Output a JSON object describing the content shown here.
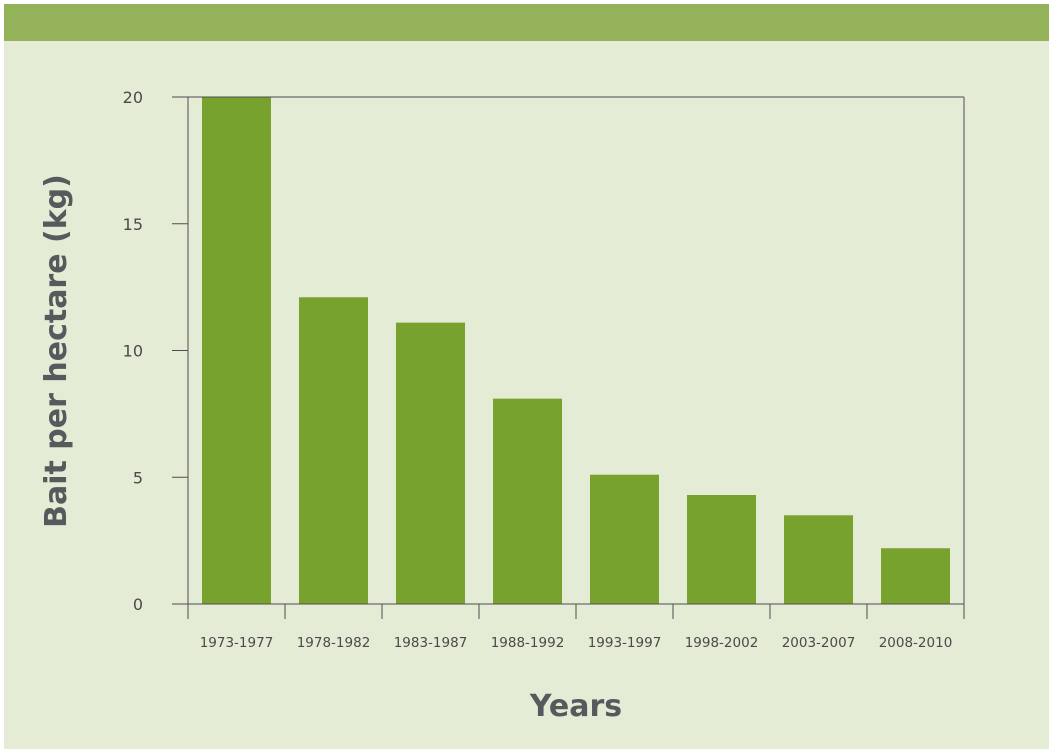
{
  "chart_data": {
    "type": "bar",
    "title": "",
    "xlabel": "Years",
    "ylabel": "Bait per hectare (kg)",
    "categories": [
      "1973-1977",
      "1978-1982",
      "1983-1987",
      "1988-1992",
      "1993-1997",
      "1998-2002",
      "2003-2007",
      "2008-2010"
    ],
    "values": [
      20,
      12.1,
      11.1,
      8.1,
      5.1,
      4.3,
      3.5,
      2.2
    ],
    "ylim": [
      0,
      20
    ],
    "yticks": [
      "0",
      "5",
      "10",
      "15",
      "20"
    ],
    "grid": false,
    "legend": "none",
    "colors": {
      "bar": "#77a22e",
      "axis": "#4d4d4d",
      "background": "#e5ecd6",
      "band": "#93b25a"
    }
  }
}
